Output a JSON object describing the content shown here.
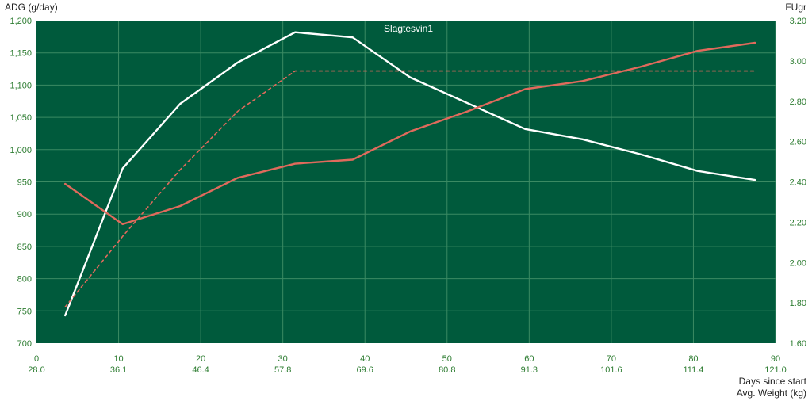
{
  "chart_data": {
    "type": "line",
    "title": "Slagtesvin1",
    "ylabel_left": "ADG (g/day)",
    "ylabel_right": "FUgr",
    "xlabel_primary": "Days since start",
    "xlabel_secondary": "Avg. Weight (kg)",
    "xlim": [
      0,
      90
    ],
    "ylim_left": [
      700,
      1200
    ],
    "ylim_right": [
      1.6,
      3.2
    ],
    "x_ticks": [
      "0",
      "10",
      "20",
      "30",
      "40",
      "50",
      "60",
      "70",
      "80",
      "90"
    ],
    "x_ticks_secondary": [
      "28.0",
      "36.1",
      "46.4",
      "57.8",
      "69.6",
      "80.8",
      "91.3",
      "101.6",
      "111.4",
      "121.0"
    ],
    "y_ticks_left": [
      "700",
      "750",
      "800",
      "850",
      "900",
      "950",
      "1,000",
      "1,050",
      "1,100",
      "1,150",
      "1,200"
    ],
    "y_ticks_right": [
      "1.60",
      "1.80",
      "2.00",
      "2.20",
      "2.40",
      "2.60",
      "2.80",
      "3.00",
      "3.20"
    ],
    "grid": true,
    "colors": {
      "plot_background": "#005a3c",
      "grid": "#3b8a63",
      "tick_text": "#2e7d32",
      "adg_line": "#ffffff",
      "fugr_line": "#e06a5c",
      "fugr_target_line": "#e06a5c"
    },
    "series": [
      {
        "axis": "left",
        "style": "solid",
        "x": [
          3.5,
          10.5,
          17.5,
          24.5,
          31.5,
          38.5,
          45.5,
          52.5,
          59.5,
          66.5,
          73.5,
          80.5,
          87.5
        ],
        "values": [
          743,
          971,
          1071,
          1135,
          1182,
          1174,
          1112,
          1072,
          1032,
          1016,
          993,
          967,
          953
        ]
      },
      {
        "axis": "right",
        "style": "solid",
        "x": [
          3.5,
          10.5,
          17.5,
          24.5,
          31.5,
          38.5,
          45.5,
          52.5,
          59.5,
          66.5,
          73.5,
          80.5,
          87.5
        ],
        "values": [
          2.39,
          2.19,
          2.28,
          2.42,
          2.49,
          2.51,
          2.65,
          2.75,
          2.86,
          2.9,
          2.97,
          3.05,
          3.09
        ]
      },
      {
        "axis": "right",
        "style": "dashed",
        "x": [
          3.5,
          10.5,
          17.5,
          24.5,
          31.5,
          38.5,
          45.5,
          52.5,
          59.5,
          66.5,
          73.5,
          80.5,
          87.5
        ],
        "values": [
          1.78,
          2.13,
          2.46,
          2.75,
          2.95,
          2.95,
          2.95,
          2.95,
          2.95,
          2.95,
          2.95,
          2.95,
          2.95
        ]
      }
    ]
  }
}
